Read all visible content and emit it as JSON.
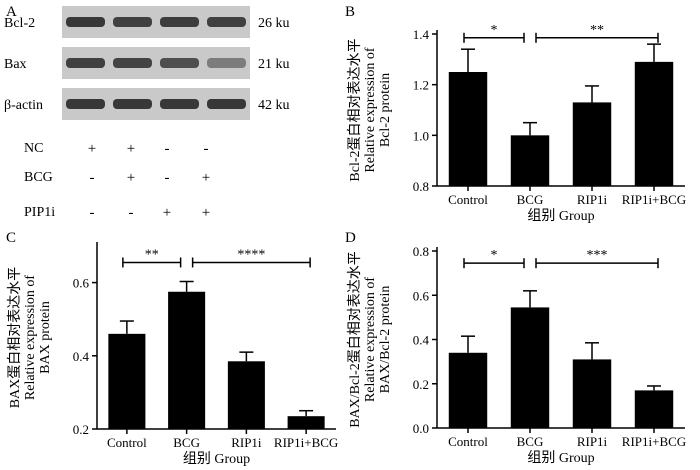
{
  "blot": {
    "panel_letter": "A",
    "bands": [
      {
        "label": "Bcl-2",
        "size": "26 ku",
        "intensities": [
          0.85,
          0.8,
          0.82,
          0.8
        ]
      },
      {
        "label": "Bax",
        "size": "21 ku",
        "intensities": [
          0.8,
          0.78,
          0.72,
          0.45
        ]
      },
      {
        "label": "β-actin",
        "size": "42 ku",
        "intensities": [
          0.85,
          0.85,
          0.85,
          0.85
        ]
      }
    ],
    "treatment_rows": [
      {
        "label": "NC",
        "signs": [
          "+",
          "+",
          "-",
          "-"
        ]
      },
      {
        "label": "BCG",
        "signs": [
          "-",
          "+",
          "-",
          "+"
        ]
      },
      {
        "label": "PIP1i",
        "signs": [
          "-",
          "-",
          "+",
          "+"
        ]
      }
    ]
  },
  "chart_data": [
    {
      "panel_letter": "B",
      "type": "bar",
      "categories": [
        "Control",
        "BCG",
        "RIP1i",
        "RIP1i+BCG"
      ],
      "values": [
        1.25,
        1.0,
        1.13,
        1.29
      ],
      "errors": [
        0.09,
        0.05,
        0.065,
        0.07
      ],
      "ylim": [
        0.8,
        1.4
      ],
      "yticks": [
        "0.8",
        "1.0",
        "1.2",
        "1.4"
      ],
      "ytick_values": [
        0.8,
        1.0,
        1.2,
        1.4
      ],
      "ylabel_cn": "Bcl-2蛋白相对表达水平",
      "ylabel_en": "Relative expression of",
      "ylabel_en2": "Bcl-2 protein",
      "xlabel": "组别 Group",
      "significance": [
        {
          "from": 0,
          "to": 1,
          "label": "*",
          "y": 1.385
        },
        {
          "from": 1,
          "to": 3,
          "label": "**",
          "y": 1.385
        }
      ]
    },
    {
      "panel_letter": "C",
      "type": "bar",
      "categories": [
        "Control",
        "BCG",
        "RIP1i",
        "RIP1i+BCG"
      ],
      "values": [
        0.46,
        0.575,
        0.385,
        0.235
      ],
      "errors": [
        0.035,
        0.028,
        0.025,
        0.015
      ],
      "ylim": [
        0.2,
        0.7
      ],
      "yticks": [
        "0.2",
        "0.4",
        "0.6"
      ],
      "ytick_values": [
        0.2,
        0.4,
        0.6
      ],
      "ylabel_cn": "BAX蛋白相对表达水平",
      "ylabel_en": "Relative expression of",
      "ylabel_en2": "BAX protein",
      "xlabel": "组别 Group",
      "significance": [
        {
          "from": 0,
          "to": 1,
          "label": "**",
          "y": 0.655
        },
        {
          "from": 1,
          "to": 3,
          "label": "****",
          "y": 0.655
        }
      ]
    },
    {
      "panel_letter": "D",
      "type": "bar",
      "categories": [
        "Control",
        "BCG",
        "RIP1i",
        "RIP1i+BCG"
      ],
      "values": [
        0.34,
        0.545,
        0.31,
        0.17
      ],
      "errors": [
        0.075,
        0.075,
        0.075,
        0.02
      ],
      "ylim": [
        0.0,
        0.8
      ],
      "yticks": [
        "0.0",
        "0.2",
        "0.4",
        "0.6",
        "0.8"
      ],
      "ytick_values": [
        0.0,
        0.2,
        0.4,
        0.6,
        0.8
      ],
      "ylabel_cn": "BAX/Bcl-2蛋白相对表达水平",
      "ylabel_en": "Relative expression of",
      "ylabel_en2": "BAX/Bcl-2 protein",
      "xlabel": "组别 Group",
      "significance": [
        {
          "from": 0,
          "to": 1,
          "label": "*",
          "y": 0.745
        },
        {
          "from": 1,
          "to": 3,
          "label": "***",
          "y": 0.745
        }
      ]
    }
  ]
}
